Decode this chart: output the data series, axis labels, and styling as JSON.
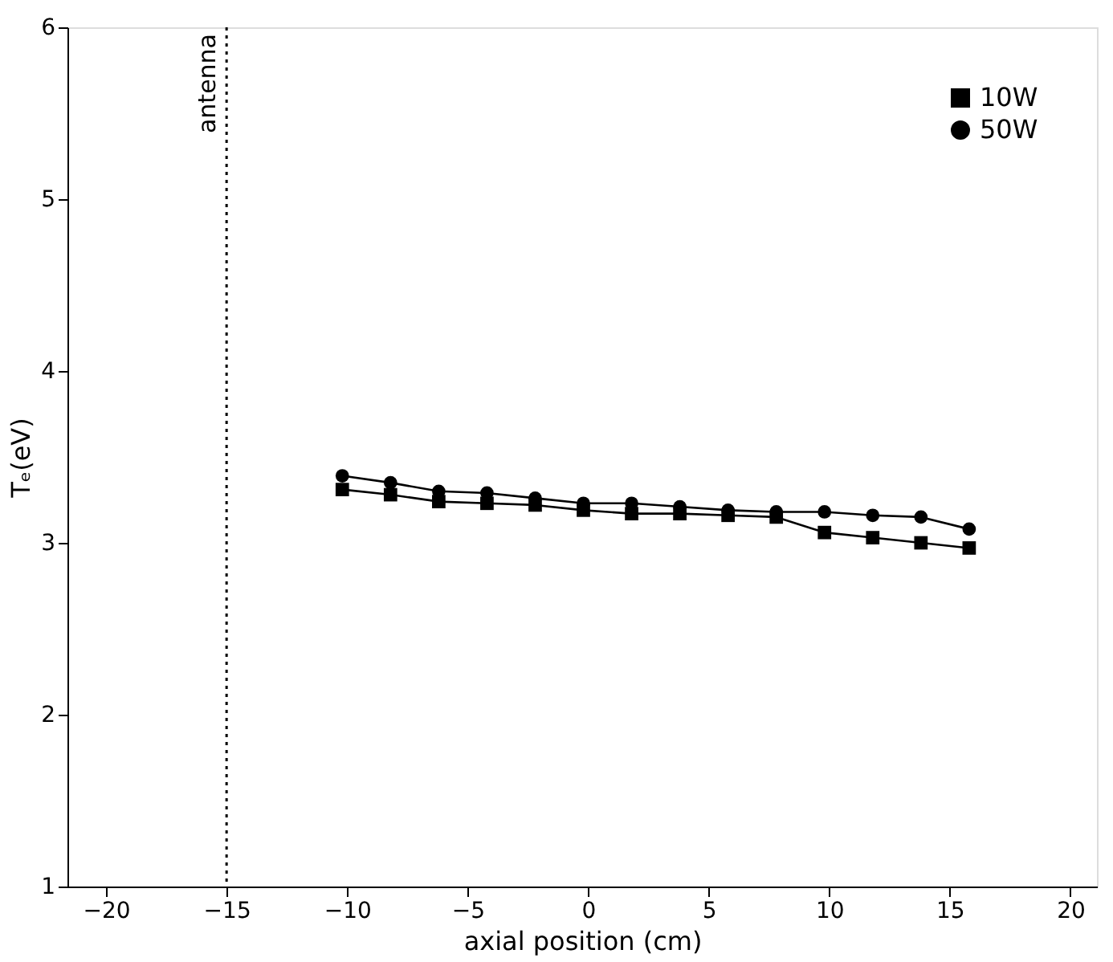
{
  "chart_data": {
    "type": "line",
    "xlabel": "axial position (cm)",
    "ylabel": "Tₑ(eV)",
    "x": [
      -10.2,
      -8.2,
      -6.2,
      -4.2,
      -2.2,
      -0.2,
      1.8,
      3.8,
      5.8,
      7.8,
      9.8,
      11.8,
      13.8,
      15.8
    ],
    "series": [
      {
        "name": "10W",
        "color": "#000000",
        "marker": "square",
        "values": [
          3.31,
          3.28,
          3.24,
          3.23,
          3.22,
          3.19,
          3.17,
          3.17,
          3.16,
          3.15,
          3.06,
          3.03,
          3.0,
          2.97
        ]
      },
      {
        "name": "50W",
        "color": "#000000",
        "marker": "circle",
        "values": [
          3.39,
          3.35,
          3.3,
          3.29,
          3.26,
          3.23,
          3.23,
          3.21,
          3.19,
          3.18,
          3.18,
          3.16,
          3.15,
          3.08
        ]
      }
    ],
    "xlim": [
      -21.6,
      21.1
    ],
    "ylim": [
      1,
      6
    ],
    "xticks": [
      -20,
      -15,
      -10,
      -5,
      0,
      5,
      10,
      15,
      20
    ],
    "yticks": [
      1,
      2,
      3,
      4,
      5,
      6
    ],
    "ref_lines": [
      {
        "axis": "x",
        "value": -15,
        "label": "antenna",
        "line_style": "dotted",
        "color": "#000000"
      }
    ],
    "grid": false,
    "legend": "top right",
    "line_style": "solid"
  }
}
